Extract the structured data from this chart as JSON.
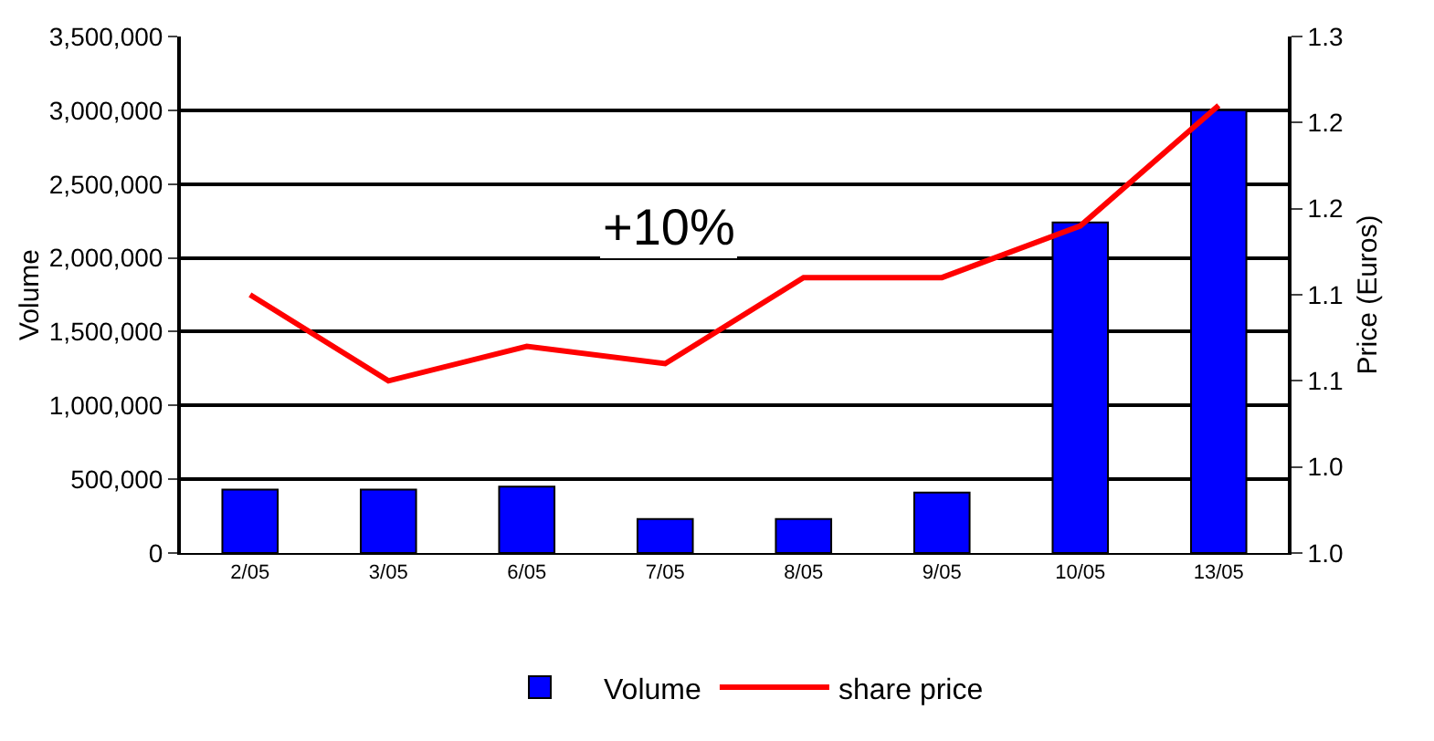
{
  "chart_data": {
    "type": "bar",
    "categories": [
      "2/05",
      "3/05",
      "6/05",
      "7/05",
      "8/05",
      "9/05",
      "10/05",
      "13/05"
    ],
    "series": [
      {
        "name": "Volume",
        "color": "#0000ff",
        "values": [
          430000,
          430000,
          450000,
          230000,
          230000,
          410000,
          2240000,
          3000000
        ]
      },
      {
        "name": "share price",
        "type": "line",
        "axis": "y2",
        "color": "#ff0000",
        "line_style": "solid",
        "marker": "none",
        "values": [
          1.15,
          1.1,
          1.12,
          1.11,
          1.16,
          1.16,
          1.19,
          1.26
        ]
      }
    ],
    "ylabel": "Volume",
    "y2label": "Price (Euros)",
    "ylim": [
      0,
      3500000
    ],
    "yticks": [
      {
        "value": 0,
        "label": "0"
      },
      {
        "value": 500000,
        "label": "500,000"
      },
      {
        "value": 1000000,
        "label": "1,000,000"
      },
      {
        "value": 1500000,
        "label": "1,500,000"
      },
      {
        "value": 2000000,
        "label": "2,000,000"
      },
      {
        "value": 2500000,
        "label": "2,500,000"
      },
      {
        "value": 3000000,
        "label": "3,000,000"
      },
      {
        "value": 3500000,
        "label": "3,500,000"
      }
    ],
    "y2lim": [
      1.0,
      1.3
    ],
    "y2ticks": [
      {
        "value": 1.0,
        "label": "1.0"
      },
      {
        "value": 1.05,
        "label": "1.0"
      },
      {
        "value": 1.1,
        "label": "1.1"
      },
      {
        "value": 1.15,
        "label": "1.1"
      },
      {
        "value": 1.2,
        "label": "1.2"
      },
      {
        "value": 1.25,
        "label": "1.2"
      },
      {
        "value": 1.3,
        "label": "1.3"
      }
    ],
    "grid": "y",
    "legend": "bottom",
    "annotations": [
      "+10%"
    ]
  }
}
